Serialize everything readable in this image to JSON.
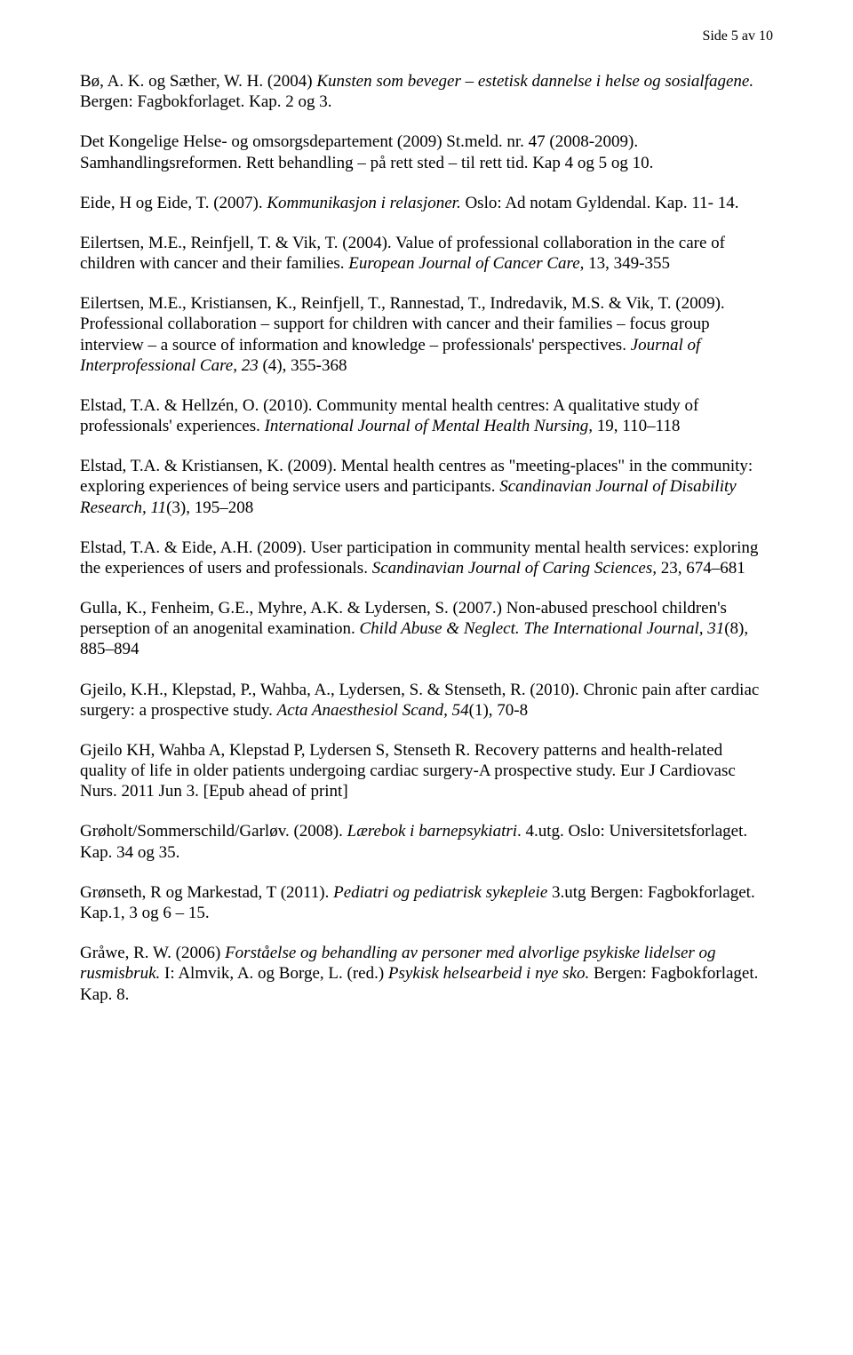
{
  "page_number": "Side 5 av 10",
  "refs": [
    {
      "html": "Bø, A. K. og Sæther, W. H. (2004) <span class=\"italic\">Kunsten som beveger – estetisk dannelse i helse og sosialfagene.</span> Bergen: Fagbokforlaget. Kap. 2 og 3."
    },
    {
      "html": "Det Kongelige Helse- og omsorgsdepartement (2009) St.meld. nr. 47 (2008-2009). Samhandlingsreformen. Rett behandling – på rett sted – til rett tid. Kap 4 og 5 og 10."
    },
    {
      "html": "Eide, H og Eide, T. (2007). <span class=\"italic\">Kommunikasjon i relasjoner.</span> Oslo: Ad notam Gyldendal. Kap. 11- 14."
    },
    {
      "html": "Eilertsen, M.E., Reinfjell, T. &amp; Vik, T. (2004). Value of professional collaboration in the care of children with cancer and their families. <span class=\"italic\">European Journal of Cancer Care</span>, 13, 349-355"
    },
    {
      "html": "Eilertsen, M.E., Kristiansen, K., Reinfjell, T., Rannestad, T., Indredavik, M.S. &amp; Vik, T. (2009). Professional collaboration – support for children with cancer and their families – focus group interview – a source of information and knowledge – professionals' perspectives. <span class=\"italic\">Journal of Interprofessional Care, 23</span> (4), 355-368"
    },
    {
      "html": "Elstad, T.A. &amp; Hellzén, O. (2010). Community mental health centres: A qualitative study of professionals' experiences. <span class=\"italic\">International Journal of Mental Health Nursing,</span> 19, 110–118"
    },
    {
      "html": "Elstad, T.A. &amp; Kristiansen, K. (2009). Mental health centres as \"meeting-places\" in the community: exploring experiences of being service users and participants. <span class=\"italic\">Scandinavian Journal of Disability Research, 11</span>(3), 195–208"
    },
    {
      "html": "Elstad, T.A. &amp; Eide, A.H. (2009). User participation in community mental health services: exploring the experiences of users and professionals. <span class=\"italic\">Scandinavian Journal of Caring Sciences,</span> 23, 674–681"
    },
    {
      "html": "Gulla, K., Fenheim, G.E., Myhre, A.K. &amp; Lydersen, S. (2007.) Non-abused preschool children's perseption of an anogenital examination.  <span class=\"italic\">Child Abuse &amp; Neglect. The International Journal, 31</span>(8), 885–894"
    },
    {
      "html": "Gjeilo, K.H., Klepstad, P., Wahba, A., Lydersen, S. &amp; Stenseth, R. (2010). Chronic pain after cardiac surgery: a prospective study. <span class=\"italic\">Acta Anaesthesiol Scand, 54</span>(1), 70-8"
    },
    {
      "html": "Gjeilo KH, Wahba A, Klepstad P, Lydersen S, Stenseth R. Recovery patterns and health-related quality of life in older patients undergoing cardiac surgery-A prospective study. Eur J Cardiovasc Nurs. 2011 Jun 3. [Epub ahead of print]"
    },
    {
      "html": "Grøholt/Sommerschild/Garløv. (2008). <span class=\"italic\">Lærebok i barnepsykiatri</span>. 4.utg. Oslo: Universitetsforlaget. Kap. 34 og 35."
    },
    {
      "html": "Grønseth, R og Markestad, T (2011). <span class=\"italic\">Pediatri og pediatrisk sykepleie</span> 3.utg Bergen: Fagbokforlaget. Kap.1, 3 og 6 – 15."
    },
    {
      "html": "Gråwe, R. W. (2006) <span class=\"italic\">Forståelse og behandling av personer med alvorlige psykiske lidelser og rusmisbruk.</span>  I: Almvik, A. og Borge, L. (red.) <span class=\"italic\">Psykisk helsearbeid i nye sko.</span> Bergen: Fagbokforlaget. Kap. 8."
    }
  ]
}
